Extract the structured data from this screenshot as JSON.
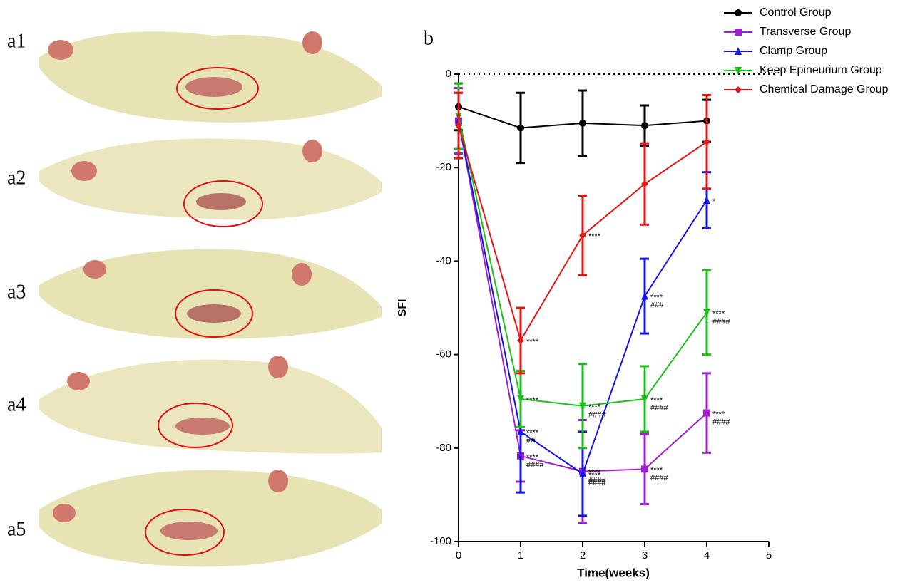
{
  "photo_labels": [
    "a1",
    "a2",
    "a3",
    "a4",
    "a5"
  ],
  "chart_data": {
    "type": "line",
    "panel_label": "b",
    "x_label": "Time(weeks)",
    "y_label": "SFI",
    "x": [
      0,
      1,
      2,
      3,
      4
    ],
    "xlim": [
      0,
      5
    ],
    "xticks": [
      0,
      1,
      2,
      3,
      4,
      5
    ],
    "ylim": [
      -100,
      0
    ],
    "yticks": [
      -100,
      -80,
      -60,
      -40,
      -20,
      0
    ],
    "hline": 0,
    "legend": "top-right",
    "series": [
      {
        "name": "Control Group",
        "color": "#000000",
        "marker": "circle",
        "values": [
          -7,
          -11.5,
          -10.5,
          -11,
          -10
        ],
        "errors": [
          5,
          7.5,
          7,
          4.3,
          4.5
        ],
        "stars": [
          null,
          null,
          null,
          null,
          null
        ],
        "hashes": [
          null,
          null,
          null,
          null,
          null
        ]
      },
      {
        "name": "Transverse Group",
        "color": "#a020d0",
        "marker": "square",
        "values": [
          -10,
          -81.7,
          -85,
          -84.5,
          -72.5
        ],
        "errors": [
          7,
          5.5,
          11,
          7.5,
          8.5
        ],
        "stars": [
          null,
          "****",
          "****",
          "****",
          "****"
        ],
        "hashes": [
          null,
          "####",
          "####",
          "####",
          "####"
        ]
      },
      {
        "name": "Clamp Group",
        "color": "#1414e6",
        "marker": "triangle-up",
        "values": [
          -10,
          -76.5,
          -85.5,
          -47.5,
          -27
        ],
        "errors": [
          6,
          13,
          9,
          8,
          6
        ],
        "stars": [
          null,
          "****",
          "****",
          "****",
          "*"
        ],
        "hashes": [
          null,
          "##",
          "####",
          "###",
          null
        ]
      },
      {
        "name": "Keep Epineurium Group",
        "color": "#18c018",
        "marker": "triangle-down",
        "values": [
          -9,
          -69.5,
          -71,
          -69.5,
          -51
        ],
        "errors": [
          7,
          6,
          9,
          7,
          9
        ],
        "stars": [
          null,
          "****",
          "****",
          "****",
          "****"
        ],
        "hashes": [
          null,
          null,
          "####",
          "####",
          "####"
        ]
      },
      {
        "name": "Chemical Damage Group",
        "color": "#e61414",
        "marker": "diamond",
        "values": [
          -11,
          -57,
          -34.5,
          -23.5,
          -14.5
        ],
        "errors": [
          7,
          7,
          8.5,
          8.7,
          10
        ],
        "stars": [
          null,
          "****",
          "****",
          null,
          null
        ],
        "hashes": [
          null,
          null,
          null,
          null,
          null
        ]
      }
    ]
  }
}
